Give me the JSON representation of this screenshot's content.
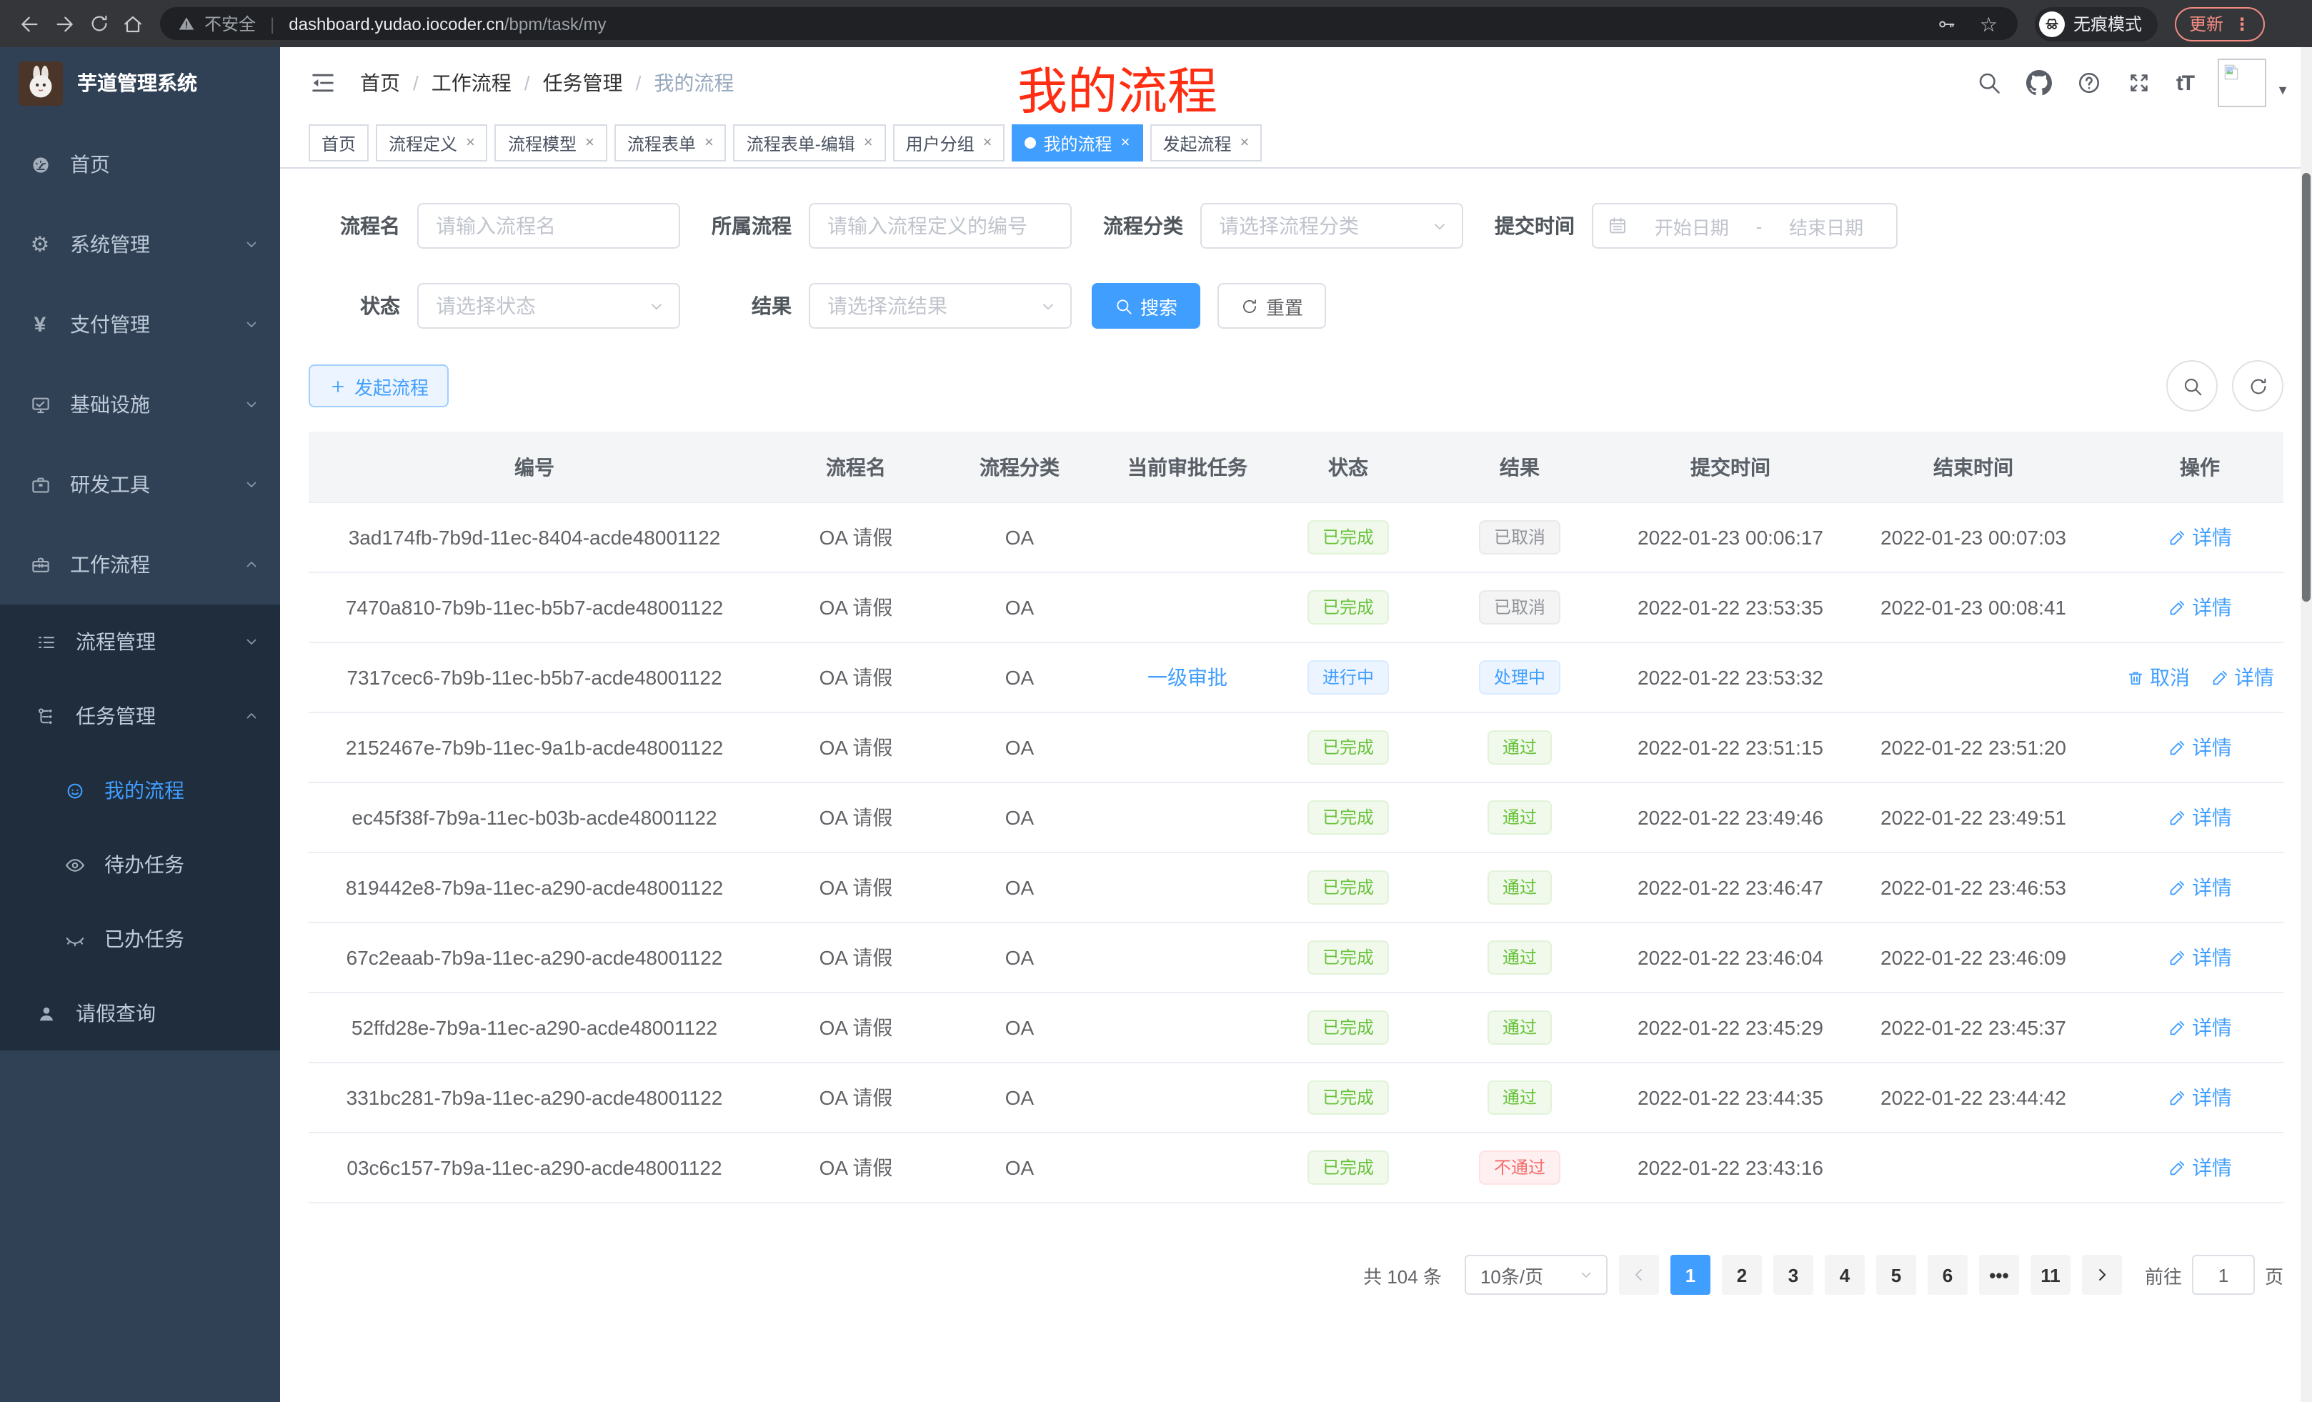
{
  "colors": {
    "accent": "#409eff",
    "sidebar_bg": "#304156",
    "submenu_bg": "#1f2d3d",
    "annotation_red": "#ff2d12",
    "success": "#67c23a",
    "info": "#909399",
    "danger": "#f56c6c"
  },
  "browser": {
    "secure_label": "不安全",
    "host": "dashboard.yudao.iocoder.cn",
    "path": "/bpm/task/my",
    "incognito_label": "无痕模式",
    "update_label": "更新"
  },
  "sidebar": {
    "title": "芋道管理系统",
    "items": [
      {
        "label": "首页",
        "icon": "dashboard",
        "level": 1,
        "sub": false,
        "chevron": null,
        "active": false
      },
      {
        "label": "系统管理",
        "icon": "gear",
        "level": 1,
        "sub": false,
        "chevron": "down",
        "active": false
      },
      {
        "label": "支付管理",
        "icon": "yen",
        "level": 1,
        "sub": false,
        "chevron": "down",
        "active": false
      },
      {
        "label": "基础设施",
        "icon": "monitor",
        "level": 1,
        "sub": false,
        "chevron": "down",
        "active": false
      },
      {
        "label": "研发工具",
        "icon": "toolbox",
        "level": 1,
        "sub": false,
        "chevron": "down",
        "active": false
      },
      {
        "label": "工作流程",
        "icon": "suitcase",
        "level": 1,
        "sub": false,
        "chevron": "up",
        "active": false
      },
      {
        "label": "流程管理",
        "icon": "list",
        "level": 2,
        "sub": true,
        "chevron": "down",
        "active": false
      },
      {
        "label": "任务管理",
        "icon": "flow",
        "level": 2,
        "sub": true,
        "chevron": "up",
        "active": false
      },
      {
        "label": "我的流程",
        "icon": "face",
        "level": 3,
        "sub": true,
        "chevron": null,
        "active": true
      },
      {
        "label": "待办任务",
        "icon": "eye",
        "level": 3,
        "sub": true,
        "chevron": null,
        "active": false
      },
      {
        "label": "已办任务",
        "icon": "eye-closed",
        "level": 3,
        "sub": true,
        "chevron": null,
        "active": false
      },
      {
        "label": "请假查询",
        "icon": "user",
        "level": 2,
        "sub": true,
        "chevron": null,
        "active": false
      }
    ]
  },
  "navbar": {
    "breadcrumb": [
      "首页",
      "工作流程",
      "任务管理",
      "我的流程"
    ]
  },
  "tabs": [
    {
      "label": "首页",
      "closable": false,
      "active": false
    },
    {
      "label": "流程定义",
      "closable": true,
      "active": false
    },
    {
      "label": "流程模型",
      "closable": true,
      "active": false
    },
    {
      "label": "流程表单",
      "closable": true,
      "active": false
    },
    {
      "label": "流程表单-编辑",
      "closable": true,
      "active": false
    },
    {
      "label": "用户分组",
      "closable": true,
      "active": false
    },
    {
      "label": "我的流程",
      "closable": true,
      "active": true
    },
    {
      "label": "发起流程",
      "closable": true,
      "active": false
    }
  ],
  "annotation": {
    "text": "我的流程"
  },
  "filters": {
    "process_name": {
      "label": "流程名",
      "placeholder": "请输入流程名"
    },
    "parent_process": {
      "label": "所属流程",
      "placeholder": "请输入流程定义的编号"
    },
    "category": {
      "label": "流程分类",
      "placeholder": "请选择流程分类"
    },
    "submit_time": {
      "label": "提交时间",
      "start_placeholder": "开始日期",
      "separator": "-",
      "end_placeholder": "结束日期"
    },
    "status": {
      "label": "状态",
      "placeholder": "请选择状态"
    },
    "result": {
      "label": "结果",
      "placeholder": "请选择流结果"
    },
    "search_label": "搜索",
    "reset_label": "重置"
  },
  "toolbar": {
    "create_label": "发起流程"
  },
  "table": {
    "columns": [
      "编号",
      "流程名",
      "流程分类",
      "当前审批任务",
      "状态",
      "结果",
      "提交时间",
      "结束时间",
      "操作"
    ],
    "rows": [
      {
        "id": "3ad174fb-7b9d-11ec-8404-acde48001122",
        "name": "OA 请假",
        "category": "OA",
        "task": "",
        "status": "已完成",
        "status_type": "success",
        "result": "已取消",
        "result_type": "info",
        "submitted": "2022-01-23 00:06:17",
        "ended": "2022-01-23 00:07:03",
        "actions": [
          {
            "label": "详情",
            "icon": "pen"
          }
        ]
      },
      {
        "id": "7470a810-7b9b-11ec-b5b7-acde48001122",
        "name": "OA 请假",
        "category": "OA",
        "task": "",
        "status": "已完成",
        "status_type": "success",
        "result": "已取消",
        "result_type": "info",
        "submitted": "2022-01-22 23:53:35",
        "ended": "2022-01-23 00:08:41",
        "actions": [
          {
            "label": "详情",
            "icon": "pen"
          }
        ]
      },
      {
        "id": "7317cec6-7b9b-11ec-b5b7-acde48001122",
        "name": "OA 请假",
        "category": "OA",
        "task": "一级审批",
        "status": "进行中",
        "status_type": "primary",
        "result": "处理中",
        "result_type": "primary",
        "submitted": "2022-01-22 23:53:32",
        "ended": "",
        "actions": [
          {
            "label": "取消",
            "icon": "trash"
          },
          {
            "label": "详情",
            "icon": "pen"
          }
        ]
      },
      {
        "id": "2152467e-7b9b-11ec-9a1b-acde48001122",
        "name": "OA 请假",
        "category": "OA",
        "task": "",
        "status": "已完成",
        "status_type": "success",
        "result": "通过",
        "result_type": "success",
        "submitted": "2022-01-22 23:51:15",
        "ended": "2022-01-22 23:51:20",
        "actions": [
          {
            "label": "详情",
            "icon": "pen"
          }
        ]
      },
      {
        "id": "ec45f38f-7b9a-11ec-b03b-acde48001122",
        "name": "OA 请假",
        "category": "OA",
        "task": "",
        "status": "已完成",
        "status_type": "success",
        "result": "通过",
        "result_type": "success",
        "submitted": "2022-01-22 23:49:46",
        "ended": "2022-01-22 23:49:51",
        "actions": [
          {
            "label": "详情",
            "icon": "pen"
          }
        ]
      },
      {
        "id": "819442e8-7b9a-11ec-a290-acde48001122",
        "name": "OA 请假",
        "category": "OA",
        "task": "",
        "status": "已完成",
        "status_type": "success",
        "result": "通过",
        "result_type": "success",
        "submitted": "2022-01-22 23:46:47",
        "ended": "2022-01-22 23:46:53",
        "actions": [
          {
            "label": "详情",
            "icon": "pen"
          }
        ]
      },
      {
        "id": "67c2eaab-7b9a-11ec-a290-acde48001122",
        "name": "OA 请假",
        "category": "OA",
        "task": "",
        "status": "已完成",
        "status_type": "success",
        "result": "通过",
        "result_type": "success",
        "submitted": "2022-01-22 23:46:04",
        "ended": "2022-01-22 23:46:09",
        "actions": [
          {
            "label": "详情",
            "icon": "pen"
          }
        ]
      },
      {
        "id": "52ffd28e-7b9a-11ec-a290-acde48001122",
        "name": "OA 请假",
        "category": "OA",
        "task": "",
        "status": "已完成",
        "status_type": "success",
        "result": "通过",
        "result_type": "success",
        "submitted": "2022-01-22 23:45:29",
        "ended": "2022-01-22 23:45:37",
        "actions": [
          {
            "label": "详情",
            "icon": "pen"
          }
        ]
      },
      {
        "id": "331bc281-7b9a-11ec-a290-acde48001122",
        "name": "OA 请假",
        "category": "OA",
        "task": "",
        "status": "已完成",
        "status_type": "success",
        "result": "通过",
        "result_type": "success",
        "submitted": "2022-01-22 23:44:35",
        "ended": "2022-01-22 23:44:42",
        "actions": [
          {
            "label": "详情",
            "icon": "pen"
          }
        ]
      },
      {
        "id": "03c6c157-7b9a-11ec-a290-acde48001122",
        "name": "OA 请假",
        "category": "OA",
        "task": "",
        "status": "已完成",
        "status_type": "success",
        "result": "不通过",
        "result_type": "danger",
        "submitted": "2022-01-22 23:43:16",
        "ended": "",
        "actions": [
          {
            "label": "详情",
            "icon": "pen"
          }
        ]
      }
    ]
  },
  "pagination": {
    "total": "共 104 条",
    "page_size": "10条/页",
    "pages": [
      "1",
      "2",
      "3",
      "4",
      "5",
      "6",
      "···",
      "11"
    ],
    "active_page": "1",
    "jump_label": "前往",
    "jump_value": "1",
    "jump_unit": "页"
  }
}
